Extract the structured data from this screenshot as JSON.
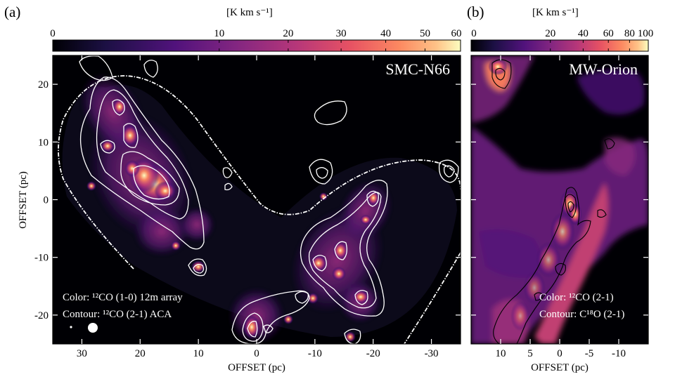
{
  "figure": {
    "panels": [
      {
        "id": "a",
        "label": "(a)",
        "colorbar": {
          "unit": "[K km s⁻¹]",
          "ticks": [
            "0",
            "10",
            "20",
            "30",
            "40",
            "50",
            "60"
          ],
          "tick_values": [
            0,
            10,
            20,
            30,
            40,
            50,
            60
          ],
          "range": [
            0,
            60
          ],
          "scale": "sqrt"
        },
        "name": "SMC-N66",
        "xlabel": "OFFSET (pc)",
        "ylabel": "OFFSET (pc)",
        "xticks": [
          "30",
          "20",
          "10",
          "0",
          "-10",
          "-20",
          "-30"
        ],
        "xtick_values": [
          30,
          20,
          10,
          0,
          -10,
          -20,
          -30
        ],
        "yticks": [
          "20",
          "10",
          "0",
          "-10",
          "-20"
        ],
        "ytick_values": [
          20,
          10,
          0,
          -10,
          -20
        ],
        "xlim": [
          35,
          -35
        ],
        "ylim": [
          -25,
          25
        ],
        "legend": {
          "color_line": "Color: ¹²CO (1-0) 12m array",
          "contour_line": "Contour: ¹²CO (2-1)  ACA"
        },
        "contour_color": "#ffffff"
      },
      {
        "id": "b",
        "label": "(b)",
        "colorbar": {
          "unit": "[K km s⁻¹]",
          "ticks": [
            "0",
            "20",
            "40",
            "60",
            "80",
            "100"
          ],
          "tick_values": [
            0,
            20,
            40,
            60,
            80,
            100
          ],
          "range": [
            0,
            100
          ],
          "scale": "sqrt"
        },
        "name": "MW-Orion",
        "xlabel": "OFFSET (pc)",
        "xticks": [
          "10",
          "5",
          "0",
          "-5",
          "-10"
        ],
        "xtick_values": [
          10,
          5,
          0,
          -5,
          -10
        ],
        "xlim": [
          15,
          -15
        ],
        "legend": {
          "color_line": "Color: ¹²CO (2-1)",
          "contour_line": "Contour: C¹⁸O (2-1)"
        },
        "contour_color": "#000000"
      }
    ],
    "colormap": [
      "#000004",
      "#2c105c",
      "#711f81",
      "#b63679",
      "#ee605e",
      "#fdae78",
      "#fcfdbf"
    ]
  }
}
